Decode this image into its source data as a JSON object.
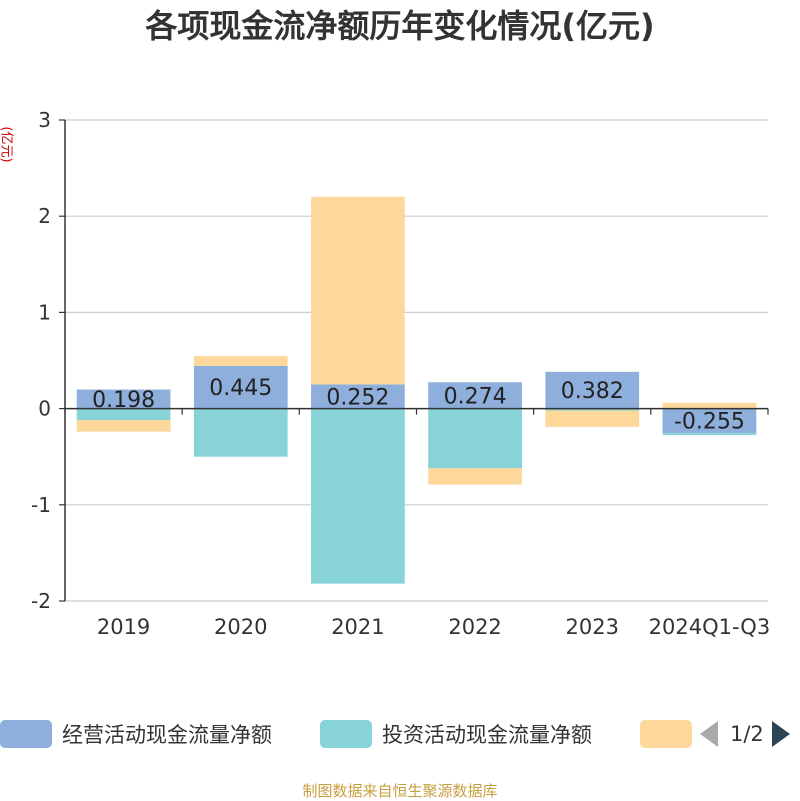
{
  "title": "各项现金流净额历年变化情况(亿元)",
  "unit_label": "(亿元)",
  "source": "制图数据来自恒生聚源数据库",
  "legend": {
    "items": [
      {
        "label": "经营活动现金流量净额",
        "color": "#8eaedb"
      },
      {
        "label": "投资活动现金流量净额",
        "color": "#87d3d8"
      },
      {
        "label": "",
        "color": "#fdd89a"
      }
    ],
    "page_text": "1/2"
  },
  "chart_data": {
    "type": "bar",
    "stacked": true,
    "categories": [
      "2019",
      "2020",
      "2021",
      "2022",
      "2023",
      "2024Q1-Q3"
    ],
    "ylim": [
      -2,
      3
    ],
    "yticks": [
      -2,
      -1,
      0,
      1,
      2,
      3
    ],
    "grid": true,
    "series": [
      {
        "name": "经营活动现金流量净额",
        "color": "#8eaedb",
        "values": [
          0.198,
          0.445,
          0.252,
          0.274,
          0.382,
          -0.255
        ]
      },
      {
        "name": "投资活动现金流量净额",
        "color": "#87d3d8",
        "values": [
          -0.12,
          -0.5,
          -1.82,
          -0.62,
          -0.02,
          -0.02
        ]
      },
      {
        "name": "",
        "color": "#fdd89a",
        "values": [
          -0.12,
          0.1,
          1.95,
          -0.17,
          -0.17,
          0.06
        ]
      }
    ],
    "data_labels": [
      "0.198",
      "0.445",
      "0.252",
      "0.274",
      "0.382",
      "-0.255"
    ]
  }
}
